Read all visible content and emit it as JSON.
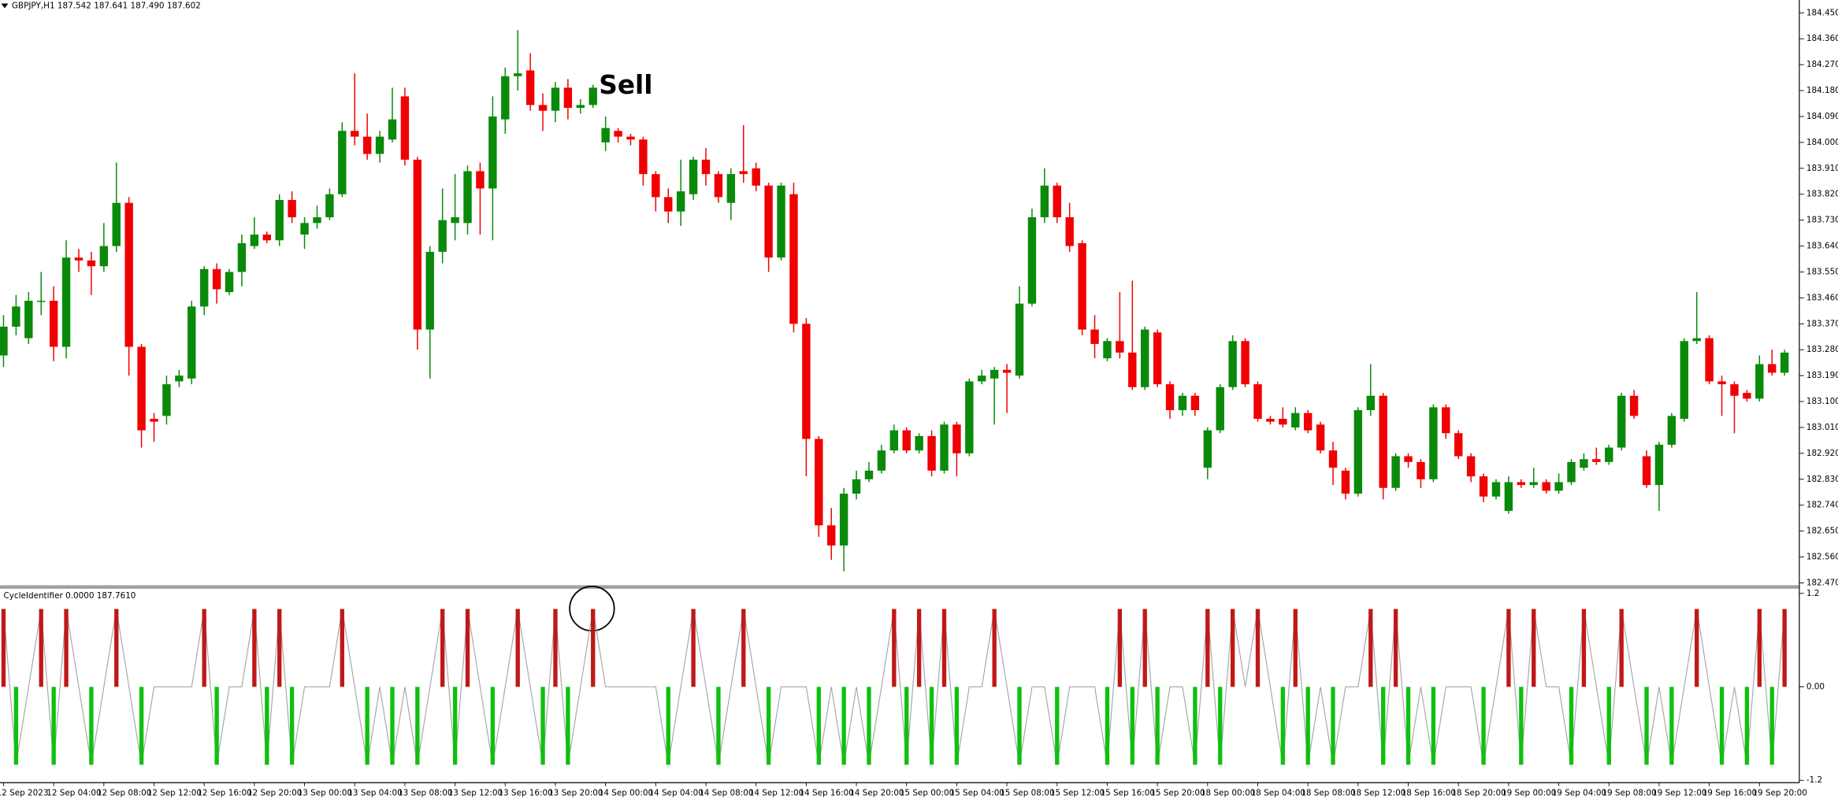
{
  "chart_data": [
    {
      "type": "candlestick",
      "title": "GBPJPY,H1 187.542 187.641 187.490 187.602",
      "annotation": "Sell",
      "up_color": "#0a8a0a",
      "down_color": "#f00000",
      "categories": [
        "12 Sep 2023",
        null,
        null,
        null,
        "12 Sep 04:00",
        null,
        null,
        null,
        "12 Sep 08:00",
        null,
        null,
        null,
        "12 Sep 12:00",
        null,
        null,
        null,
        "12 Sep 16:00",
        null,
        null,
        null,
        "12 Sep 20:00",
        null,
        null,
        null,
        "13 Sep 00:00",
        null,
        null,
        null,
        "13 Sep 04:00",
        null,
        null,
        null,
        "13 Sep 08:00",
        null,
        null,
        null,
        "13 Sep 12:00",
        null,
        null,
        null,
        "13 Sep 16:00",
        null,
        null,
        null,
        "13 Sep 20:00",
        null,
        null,
        null,
        "14 Sep 00:00",
        null,
        null,
        null,
        "14 Sep 04:00",
        null,
        null,
        null,
        "14 Sep 08:00",
        null,
        null,
        null,
        "14 Sep 12:00",
        null,
        null,
        null,
        "14 Sep 16:00",
        null,
        null,
        null,
        "14 Sep 20:00",
        null,
        null,
        null,
        "15 Sep 00:00",
        null,
        null,
        null,
        "15 Sep 04:00",
        null,
        null,
        null,
        "15 Sep 08:00",
        null,
        null,
        null,
        "15 Sep 12:00",
        null,
        null,
        null,
        "15 Sep 16:00",
        null,
        null,
        null,
        "15 Sep 20:00",
        null,
        null,
        null,
        "18 Sep 00:00",
        null,
        null,
        null,
        "18 Sep 04:00",
        null,
        null,
        null,
        "18 Sep 08:00",
        null,
        null,
        null,
        "18 Sep 12:00",
        null,
        null,
        null,
        "18 Sep 16:00",
        null,
        null,
        null,
        "18 Sep 20:00",
        null,
        null,
        null,
        "19 Sep 00:00",
        null,
        null,
        null,
        "19 Sep 04:00",
        null,
        null,
        null,
        "19 Sep 08:00",
        null,
        null,
        null,
        "19 Sep 12:00",
        null,
        null,
        null,
        "19 Sep 16:00",
        null,
        null,
        null,
        "19 Sep 20:00",
        null,
        null
      ],
      "open": [
        183.26,
        183.36,
        183.32,
        183.45,
        183.45,
        183.29,
        183.6,
        183.59,
        183.57,
        183.64,
        183.79,
        183.29,
        183.04,
        183.05,
        183.17,
        183.18,
        183.43,
        183.56,
        183.48,
        183.55,
        183.64,
        183.68,
        183.66,
        183.8,
        183.68,
        183.72,
        183.74,
        183.82,
        184.04,
        184.02,
        183.96,
        184.01,
        184.16,
        183.94,
        183.35,
        183.62,
        183.72,
        183.72,
        183.9,
        183.84,
        184.08,
        184.23,
        184.25,
        184.13,
        184.11,
        184.19,
        184.12,
        184.13,
        184.0,
        184.04,
        184.02,
        184.01,
        183.89,
        183.81,
        183.76,
        183.82,
        183.94,
        183.89,
        183.79,
        183.9,
        183.91,
        183.85,
        183.6,
        183.82,
        183.37,
        182.97,
        182.67,
        182.6,
        182.78,
        182.83,
        182.86,
        182.93,
        183.0,
        182.93,
        182.98,
        182.86,
        183.02,
        182.92,
        183.17,
        183.18,
        183.21,
        183.19,
        183.44,
        183.74,
        183.85,
        183.74,
        183.65,
        183.35,
        183.25,
        183.31,
        183.27,
        183.15,
        183.34,
        183.16,
        183.07,
        183.12,
        182.87,
        183.0,
        183.15,
        183.31,
        183.16,
        183.04,
        183.04,
        183.01,
        183.06,
        183.02,
        182.93,
        182.86,
        182.78,
        183.07,
        183.12,
        182.8,
        182.91,
        182.89,
        182.83,
        183.08,
        182.99,
        182.91,
        182.84,
        182.77,
        182.72,
        182.82,
        182.81,
        182.82,
        182.79,
        182.82,
        182.87,
        182.9,
        182.89,
        182.94,
        183.12,
        182.91,
        182.81,
        182.95,
        183.04,
        183.31,
        183.32,
        183.17,
        183.16,
        183.13,
        183.11,
        183.23,
        183.2
      ],
      "high": [
        183.4,
        183.47,
        183.48,
        183.55,
        183.5,
        183.66,
        183.63,
        183.62,
        183.72,
        183.93,
        183.81,
        183.3,
        183.06,
        183.19,
        183.21,
        183.45,
        183.57,
        183.58,
        183.56,
        183.68,
        183.74,
        183.69,
        183.82,
        183.83,
        183.74,
        183.78,
        183.84,
        184.07,
        184.24,
        184.1,
        184.04,
        184.19,
        184.19,
        183.95,
        183.64,
        183.84,
        183.89,
        183.92,
        183.93,
        184.16,
        184.26,
        184.39,
        184.31,
        184.17,
        184.21,
        184.22,
        184.15,
        184.2,
        184.09,
        184.05,
        184.03,
        184.02,
        183.9,
        183.84,
        183.94,
        183.95,
        183.98,
        183.9,
        183.91,
        184.06,
        183.93,
        183.86,
        183.86,
        183.86,
        183.39,
        182.98,
        182.73,
        182.8,
        182.86,
        182.89,
        182.95,
        183.02,
        183.01,
        182.99,
        183.0,
        183.03,
        183.03,
        183.18,
        183.21,
        183.22,
        183.23,
        183.5,
        183.77,
        183.91,
        183.86,
        183.79,
        183.66,
        183.4,
        183.32,
        183.48,
        183.52,
        183.36,
        183.35,
        183.17,
        183.13,
        183.13,
        183.01,
        183.16,
        183.33,
        183.32,
        183.17,
        183.05,
        183.08,
        183.08,
        183.07,
        183.03,
        182.96,
        182.87,
        183.08,
        183.23,
        183.13,
        182.92,
        182.92,
        182.9,
        183.09,
        183.09,
        183.0,
        182.92,
        182.85,
        182.83,
        182.84,
        182.83,
        182.87,
        182.83,
        182.85,
        182.9,
        182.92,
        182.94,
        182.95,
        183.13,
        183.14,
        182.93,
        182.96,
        183.06,
        183.32,
        183.48,
        183.33,
        183.19,
        183.17,
        183.14,
        183.26,
        183.28,
        183.28
      ],
      "low": [
        183.22,
        183.33,
        183.3,
        183.4,
        183.24,
        183.25,
        183.55,
        183.47,
        183.55,
        183.62,
        183.19,
        182.94,
        182.96,
        183.02,
        183.15,
        183.16,
        183.4,
        183.44,
        183.47,
        183.5,
        183.63,
        183.65,
        183.64,
        183.72,
        183.63,
        183.7,
        183.73,
        183.81,
        183.99,
        183.94,
        183.93,
        184.0,
        183.92,
        183.28,
        183.18,
        183.58,
        183.66,
        183.68,
        183.68,
        183.66,
        184.03,
        184.18,
        184.11,
        184.04,
        184.07,
        184.08,
        184.1,
        184.12,
        183.97,
        184.0,
        183.99,
        183.85,
        183.76,
        183.72,
        183.71,
        183.8,
        183.85,
        183.79,
        183.73,
        183.86,
        183.83,
        183.55,
        183.59,
        183.34,
        182.84,
        182.63,
        182.55,
        182.51,
        182.76,
        182.82,
        182.85,
        182.92,
        182.92,
        182.92,
        182.84,
        182.85,
        182.84,
        182.91,
        183.16,
        183.02,
        183.06,
        183.18,
        183.43,
        183.72,
        183.72,
        183.62,
        183.33,
        183.25,
        183.24,
        183.25,
        183.14,
        183.14,
        183.15,
        183.04,
        183.05,
        183.05,
        182.83,
        182.99,
        183.14,
        183.15,
        183.03,
        183.02,
        183.01,
        183.0,
        182.99,
        182.92,
        182.81,
        182.76,
        182.77,
        183.05,
        182.76,
        182.79,
        182.87,
        182.8,
        182.82,
        182.97,
        182.9,
        182.82,
        182.75,
        182.76,
        182.71,
        182.8,
        182.8,
        182.78,
        182.78,
        182.81,
        182.86,
        182.88,
        182.88,
        182.93,
        183.04,
        182.8,
        182.72,
        182.94,
        183.03,
        183.3,
        183.16,
        183.05,
        182.99,
        183.1,
        183.1,
        183.19,
        183.19
      ],
      "close": [
        183.36,
        183.43,
        183.45,
        183.45,
        183.29,
        183.6,
        183.59,
        183.57,
        183.64,
        183.79,
        183.29,
        183.0,
        183.03,
        183.16,
        183.19,
        183.43,
        183.56,
        183.49,
        183.55,
        183.65,
        183.68,
        183.66,
        183.8,
        183.74,
        183.72,
        183.74,
        183.82,
        184.04,
        184.02,
        183.96,
        184.02,
        184.08,
        183.94,
        183.35,
        183.62,
        183.73,
        183.74,
        183.9,
        183.84,
        184.09,
        184.23,
        184.24,
        184.13,
        184.11,
        184.19,
        184.12,
        184.13,
        184.19,
        184.05,
        184.02,
        184.01,
        183.89,
        183.81,
        183.76,
        183.83,
        183.94,
        183.89,
        183.81,
        183.89,
        183.89,
        183.85,
        183.6,
        183.85,
        183.37,
        182.97,
        182.67,
        182.6,
        182.78,
        182.83,
        182.86,
        182.93,
        183.0,
        182.93,
        182.98,
        182.86,
        183.02,
        182.92,
        183.17,
        183.19,
        183.21,
        183.2,
        183.44,
        183.74,
        183.85,
        183.74,
        183.64,
        183.35,
        183.3,
        183.31,
        183.27,
        183.15,
        183.35,
        183.16,
        183.07,
        183.12,
        183.07,
        183.0,
        183.15,
        183.31,
        183.16,
        183.04,
        183.03,
        183.02,
        183.06,
        183.0,
        182.93,
        182.87,
        182.78,
        183.07,
        183.12,
        182.8,
        182.91,
        182.89,
        182.83,
        183.08,
        182.99,
        182.91,
        182.84,
        182.77,
        182.82,
        182.82,
        182.81,
        182.82,
        182.79,
        182.82,
        182.89,
        182.9,
        182.89,
        182.94,
        183.12,
        183.05,
        182.81,
        182.95,
        183.05,
        183.31,
        183.32,
        183.17,
        183.16,
        183.12,
        183.11,
        183.23,
        183.2,
        183.27
      ],
      "ylim": [
        182.47,
        184.45
      ],
      "yticks": [
        {
          "value": 184.45,
          "label": "184.450"
        },
        {
          "value": 184.36,
          "label": "184.360"
        },
        {
          "value": 184.27,
          "label": "184.270"
        },
        {
          "value": 184.18,
          "label": "184.180"
        },
        {
          "value": 184.09,
          "label": "184.090"
        },
        {
          "value": 184.0,
          "label": "184.000"
        },
        {
          "value": 183.91,
          "label": "183.910"
        },
        {
          "value": 183.82,
          "label": "183.820"
        },
        {
          "value": 183.73,
          "label": "183.730"
        },
        {
          "value": 183.64,
          "label": "183.640"
        },
        {
          "value": 183.55,
          "label": "183.550"
        },
        {
          "value": 183.46,
          "label": "183.460"
        },
        {
          "value": 183.37,
          "label": "183.370"
        },
        {
          "value": 183.28,
          "label": "183.280"
        },
        {
          "value": 183.19,
          "label": "183.190"
        },
        {
          "value": 183.1,
          "label": "183.100"
        },
        {
          "value": 183.01,
          "label": "183.010"
        },
        {
          "value": 182.92,
          "label": "182.920"
        },
        {
          "value": 182.83,
          "label": "182.830"
        },
        {
          "value": 182.74,
          "label": "182.740"
        },
        {
          "value": 182.65,
          "label": "182.650"
        },
        {
          "value": 182.56,
          "label": "182.560"
        },
        {
          "value": 182.47,
          "label": "182.470"
        }
      ]
    },
    {
      "type": "bar",
      "title": "CycleIdentifier 0.0000 187.7610",
      "up_color": "#c01818",
      "down_color": "#10c010",
      "line_color": "#a8a8a8",
      "values": [
        1,
        -1,
        0,
        1,
        -1,
        1,
        0,
        -1,
        0,
        1,
        0,
        -1,
        0,
        0,
        0,
        0,
        1,
        -1,
        0,
        0,
        1,
        -1,
        1,
        -1,
        0,
        0,
        0,
        1,
        0,
        -1,
        0,
        -1,
        0,
        -1,
        0,
        1,
        -1,
        1,
        0,
        -1,
        0,
        1,
        0,
        -1,
        1,
        -1,
        0,
        1,
        0,
        0,
        0,
        0,
        0,
        -1,
        0,
        1,
        0,
        -1,
        0,
        1,
        0,
        -1,
        0,
        0,
        0,
        -1,
        0,
        -1,
        0,
        -1,
        0,
        1,
        -1,
        1,
        -1,
        1,
        -1,
        0,
        0,
        1,
        0,
        -1,
        0,
        0,
        -1,
        0,
        0,
        0,
        -1,
        1,
        -1,
        1,
        -1,
        0,
        0,
        -1,
        1,
        -1,
        1,
        0,
        1,
        0,
        -1,
        1,
        -1,
        0,
        -1,
        0,
        0,
        1,
        -1,
        1,
        -1,
        0,
        -1,
        0,
        0,
        0,
        -1,
        0,
        1,
        -1,
        1,
        0,
        0,
        -1,
        1,
        0,
        -1,
        1,
        0,
        -1,
        0,
        -1,
        0,
        1,
        0,
        -1,
        0,
        -1,
        1,
        -1,
        1
      ],
      "ylim": [
        -1.2,
        1.2
      ],
      "yticks": [
        1.2,
        {
          "value": 0,
          "label": "0.00"
        },
        -1.2
      ]
    }
  ]
}
